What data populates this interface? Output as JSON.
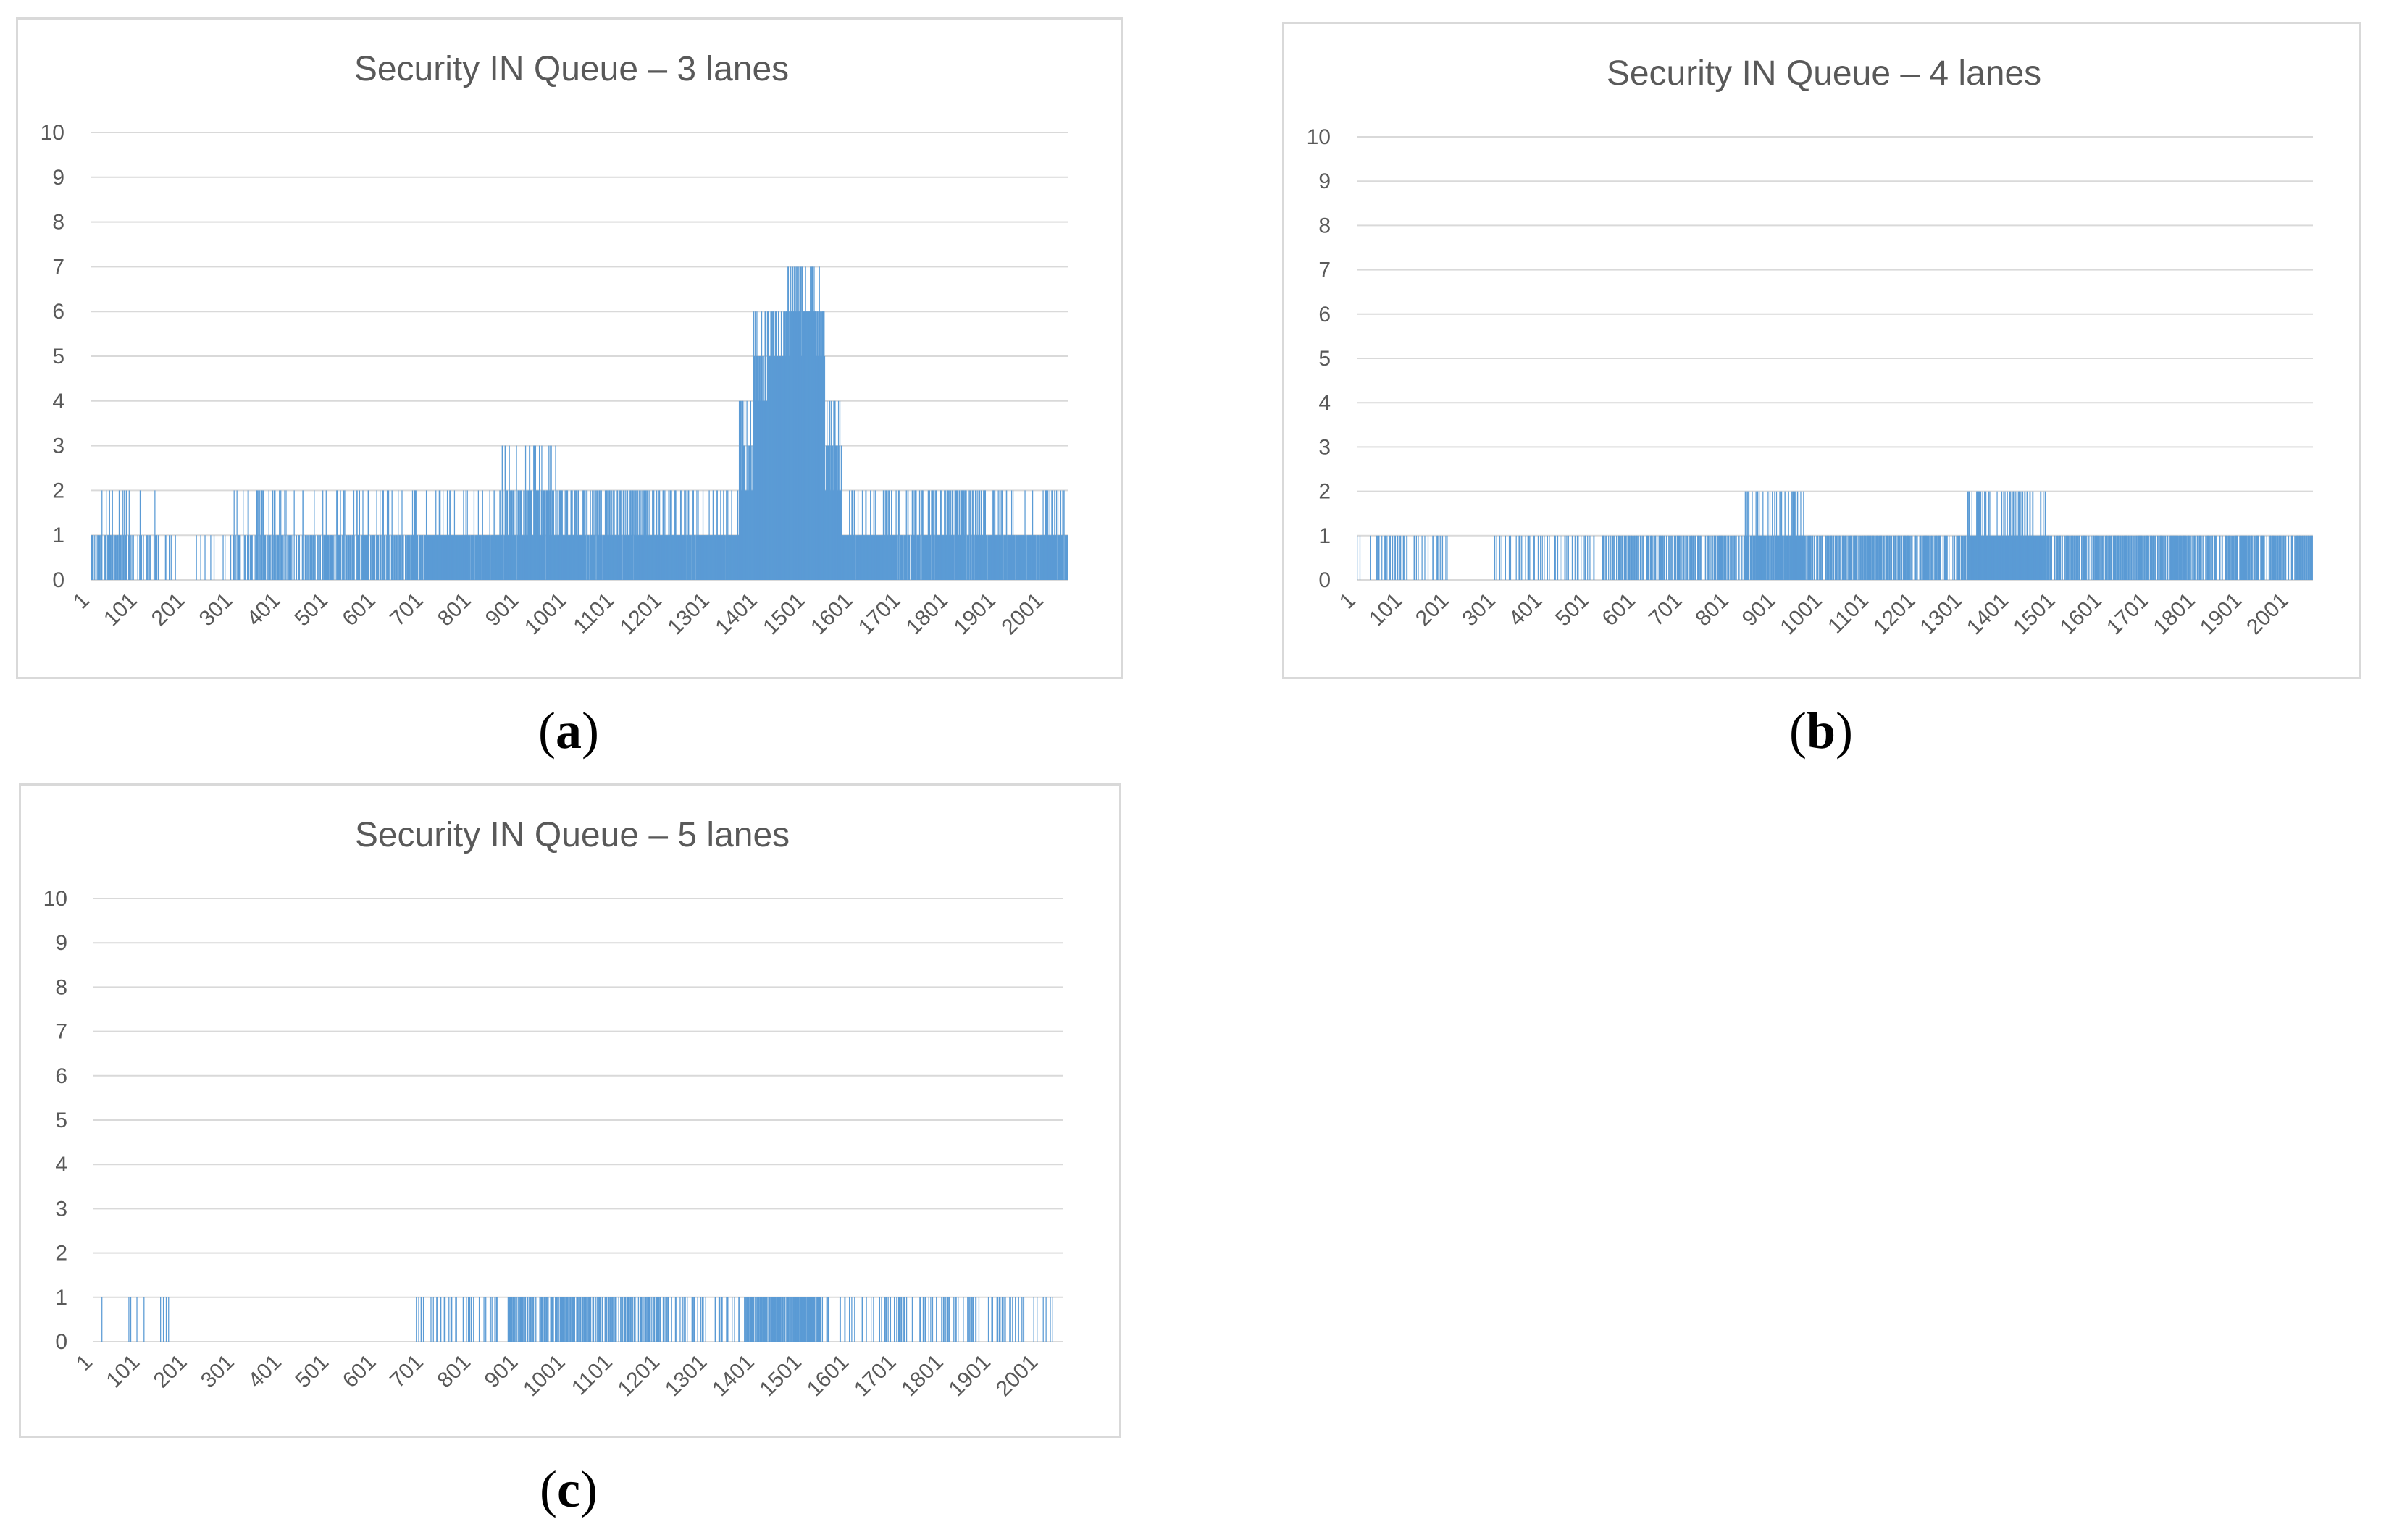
{
  "chart_data": [
    {
      "id": "a",
      "type": "bar",
      "title": "Security IN Queue – 3 lanes",
      "caption_letter": "a",
      "ylim": [
        0,
        10
      ],
      "yticks": [
        "0",
        "1",
        "2",
        "3",
        "4",
        "5",
        "6",
        "7",
        "8",
        "9",
        "10"
      ],
      "xticks": [
        "1",
        "101",
        "201",
        "301",
        "401",
        "501",
        "601",
        "701",
        "801",
        "901",
        "1001",
        "1101",
        "1201",
        "1301",
        "1401",
        "1501",
        "1601",
        "1701",
        "1801",
        "1901",
        "2001"
      ],
      "x_count": 2050,
      "color": "#5b9bd5",
      "segments": [
        {
          "from": 1,
          "to": 140,
          "levels": [
            0,
            1,
            1,
            1,
            0,
            1,
            2
          ],
          "density": 0.7
        },
        {
          "from": 140,
          "to": 300,
          "levels": [
            0,
            0,
            0,
            0,
            1
          ],
          "density": 0.3
        },
        {
          "from": 300,
          "to": 460,
          "levels": [
            0,
            1,
            1,
            1,
            2
          ],
          "density": 0.65
        },
        {
          "from": 460,
          "to": 700,
          "levels": [
            0,
            1,
            1,
            1,
            1,
            2
          ],
          "density": 0.8
        },
        {
          "from": 700,
          "to": 860,
          "levels": [
            1,
            1,
            1,
            1,
            2
          ],
          "density": 0.95
        },
        {
          "from": 860,
          "to": 990,
          "levels": [
            1,
            1,
            2,
            2,
            2,
            3
          ],
          "density": 0.95
        },
        {
          "from": 990,
          "to": 1250,
          "levels": [
            1,
            1,
            1,
            2,
            2
          ],
          "density": 0.92
        },
        {
          "from": 1250,
          "to": 1360,
          "levels": [
            1,
            1,
            1,
            1,
            2
          ],
          "density": 0.95
        },
        {
          "from": 1360,
          "to": 1390,
          "levels": [
            2,
            3,
            4
          ],
          "density": 1.0
        },
        {
          "from": 1390,
          "to": 1420,
          "levels": [
            4,
            5,
            5,
            6
          ],
          "density": 1.0
        },
        {
          "from": 1420,
          "to": 1460,
          "levels": [
            5,
            5,
            6,
            6
          ],
          "density": 1.0
        },
        {
          "from": 1460,
          "to": 1540,
          "levels": [
            5,
            6,
            6,
            6,
            7
          ],
          "density": 1.0
        },
        {
          "from": 1540,
          "to": 1575,
          "levels": [
            2,
            3,
            4
          ],
          "density": 1.0
        },
        {
          "from": 1575,
          "to": 1660,
          "levels": [
            1,
            1,
            1,
            1,
            2
          ],
          "density": 0.95
        },
        {
          "from": 1660,
          "to": 1880,
          "levels": [
            1,
            1,
            1,
            2,
            2
          ],
          "density": 0.9
        },
        {
          "from": 1880,
          "to": 2050,
          "levels": [
            1,
            1,
            1,
            1,
            2
          ],
          "density": 0.9
        }
      ]
    },
    {
      "id": "b",
      "type": "bar",
      "title": "Security IN Queue – 4 lanes",
      "caption_letter": "b",
      "ylim": [
        0,
        10
      ],
      "yticks": [
        "0",
        "1",
        "2",
        "3",
        "4",
        "5",
        "6",
        "7",
        "8",
        "9",
        "10"
      ],
      "xticks": [
        "1",
        "101",
        "201",
        "301",
        "401",
        "501",
        "601",
        "701",
        "801",
        "901",
        "1001",
        "1101",
        "1201",
        "1301",
        "1401",
        "1501",
        "1601",
        "1701",
        "1801",
        "1901",
        "2001"
      ],
      "x_count": 2050,
      "color": "#5b9bd5",
      "segments": [
        {
          "from": 1,
          "to": 200,
          "levels": [
            0,
            0,
            1
          ],
          "density": 0.6
        },
        {
          "from": 200,
          "to": 290,
          "levels": [
            0
          ],
          "density": 0.1
        },
        {
          "from": 290,
          "to": 520,
          "levels": [
            0,
            0,
            1
          ],
          "density": 0.6
        },
        {
          "from": 520,
          "to": 830,
          "levels": [
            0,
            1,
            1
          ],
          "density": 0.75
        },
        {
          "from": 830,
          "to": 960,
          "levels": [
            1,
            1,
            1,
            2
          ],
          "density": 0.9
        },
        {
          "from": 960,
          "to": 1310,
          "levels": [
            0,
            1,
            1,
            1
          ],
          "density": 0.85
        },
        {
          "from": 1310,
          "to": 1480,
          "levels": [
            1,
            1,
            1,
            2
          ],
          "density": 1.0
        },
        {
          "from": 1480,
          "to": 2050,
          "levels": [
            0,
            1,
            1,
            1,
            1
          ],
          "density": 0.85
        }
      ]
    },
    {
      "id": "c",
      "type": "bar",
      "title": "Security IN Queue – 5 lanes",
      "caption_letter": "c",
      "ylim": [
        0,
        10
      ],
      "yticks": [
        "0",
        "1",
        "2",
        "3",
        "4",
        "5",
        "6",
        "7",
        "8",
        "9",
        "10"
      ],
      "xticks": [
        "1",
        "101",
        "201",
        "301",
        "401",
        "501",
        "601",
        "701",
        "801",
        "901",
        "1001",
        "1101",
        "1201",
        "1301",
        "1401",
        "1501",
        "1601",
        "1701",
        "1801",
        "1901",
        "2001"
      ],
      "x_count": 2050,
      "color": "#5b9bd5",
      "segments": [
        {
          "from": 1,
          "to": 160,
          "levels": [
            0,
            0,
            0,
            1
          ],
          "density": 0.3
        },
        {
          "from": 160,
          "to": 680,
          "levels": [
            0
          ],
          "density": 0.04
        },
        {
          "from": 680,
          "to": 880,
          "levels": [
            0,
            0,
            1
          ],
          "density": 0.6
        },
        {
          "from": 880,
          "to": 1200,
          "levels": [
            0,
            1,
            1,
            1
          ],
          "density": 0.75
        },
        {
          "from": 1200,
          "to": 1380,
          "levels": [
            0,
            0,
            1
          ],
          "density": 0.6
        },
        {
          "from": 1380,
          "to": 1540,
          "levels": [
            1,
            1,
            1,
            1,
            0
          ],
          "density": 0.9
        },
        {
          "from": 1540,
          "to": 2030,
          "levels": [
            0,
            0,
            1
          ],
          "density": 0.6
        }
      ]
    }
  ]
}
